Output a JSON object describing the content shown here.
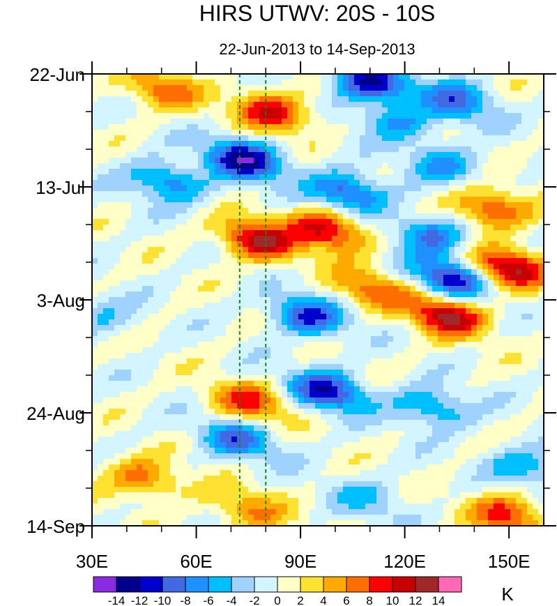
{
  "chart_data": {
    "type": "heatmap",
    "title": "HIRS UTWV: 20S - 10S",
    "subtitle": "22-Jun-2013 to 14-Sep-2013",
    "x_axis": {
      "range": [
        30,
        160
      ],
      "ticks": [
        30,
        60,
        90,
        120,
        150
      ],
      "tick_labels": [
        "30E",
        "60E",
        "90E",
        "120E",
        "150E"
      ],
      "minor_ticks": [
        40,
        50,
        70,
        80,
        100,
        110,
        130,
        140
      ]
    },
    "y_axis": {
      "range_days": [
        0,
        84
      ],
      "ticks": [
        0,
        21,
        42,
        63,
        84
      ],
      "tick_labels": [
        "22-Jun",
        "13-Jul",
        "3-Aug",
        "24-Aug",
        "14-Sep"
      ],
      "minor_ticks": [
        7,
        14,
        28,
        35,
        49,
        56,
        70,
        77
      ]
    },
    "reference_lines": [
      72.5,
      80
    ],
    "colorbar": {
      "unit_label": "K",
      "levels": [
        -14,
        -12,
        -10,
        -8,
        -6,
        -4,
        -2,
        0,
        2,
        4,
        6,
        8,
        10,
        12,
        14
      ],
      "level_labels": [
        "-14",
        "-12",
        "-10",
        "-8",
        "-6",
        "-4",
        "-2",
        "0",
        "2",
        "4",
        "6",
        "8",
        "10",
        "12",
        "14"
      ],
      "colors": [
        "#8a2be2",
        "#00008b",
        "#0000cd",
        "#4169e1",
        "#1e90ff",
        "#00bfff",
        "#a0d2ff",
        "#d2f5ff",
        "#ffffc8",
        "#ffe132",
        "#ffaa00",
        "#ff6e00",
        "#ff0000",
        "#c80000",
        "#a02828",
        "#ff69b4"
      ]
    },
    "features": [
      {
        "x": 110,
        "t": 1.5,
        "value": -12
      },
      {
        "x": 135,
        "t": 5,
        "value": -8
      },
      {
        "x": 50,
        "t": 3,
        "value": 7
      },
      {
        "x": 82,
        "t": 7,
        "value": 10
      },
      {
        "x": 74,
        "t": 16,
        "value": -13
      },
      {
        "x": 52,
        "t": 20,
        "value": -8
      },
      {
        "x": 104,
        "t": 22,
        "value": -10
      },
      {
        "x": 132,
        "t": 17,
        "value": -6
      },
      {
        "x": 128,
        "t": 30,
        "value": -8
      },
      {
        "x": 118,
        "t": 9,
        "value": -6
      },
      {
        "x": 78,
        "t": 31,
        "value": 12
      },
      {
        "x": 98,
        "t": 29,
        "value": 11
      },
      {
        "x": 145,
        "t": 25,
        "value": 9
      },
      {
        "x": 150,
        "t": 36,
        "value": 12
      },
      {
        "x": 133,
        "t": 38,
        "value": -11
      },
      {
        "x": 92,
        "t": 45,
        "value": -10
      },
      {
        "x": 132,
        "t": 45,
        "value": 12
      },
      {
        "x": 110,
        "t": 40,
        "value": 7
      },
      {
        "x": 98,
        "t": 59,
        "value": -11
      },
      {
        "x": 128,
        "t": 62,
        "value": -7
      },
      {
        "x": 72,
        "t": 68,
        "value": -8
      },
      {
        "x": 155,
        "t": 73,
        "value": -6
      },
      {
        "x": 45,
        "t": 75,
        "value": 7
      },
      {
        "x": 150,
        "t": 82,
        "value": 9
      },
      {
        "x": 75,
        "t": 61,
        "value": 8
      },
      {
        "x": 33,
        "t": 45,
        "value": -4
      },
      {
        "x": 110,
        "t": 79,
        "value": -4
      },
      {
        "x": 75,
        "t": 81,
        "value": 6
      }
    ]
  }
}
